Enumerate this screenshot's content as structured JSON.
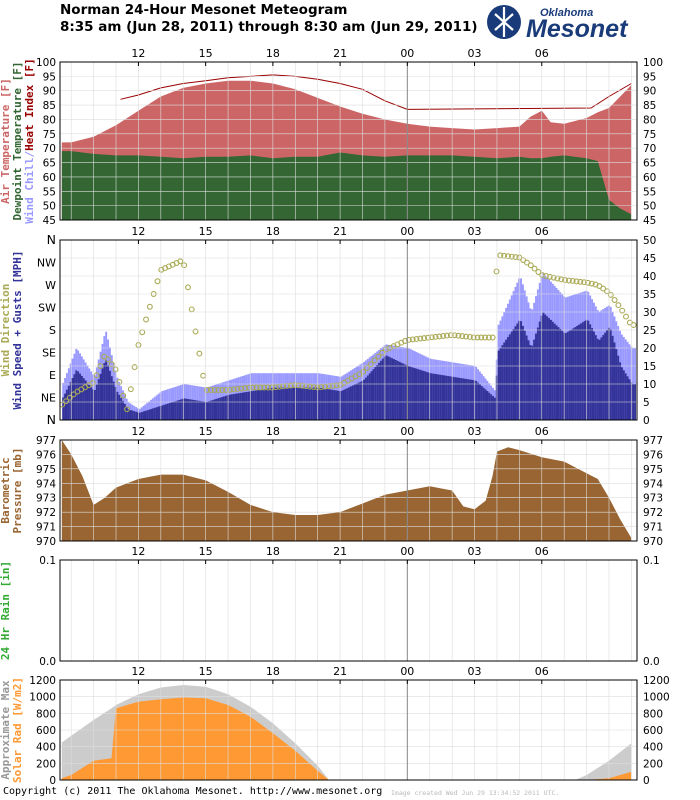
{
  "header": {
    "title": "Norman 24-Hour Mesonet Meteogram",
    "subtitle": "8:35 am (Jun 28, 2011) through 8:30 am (Jun 29, 2011)"
  },
  "logo": {
    "top": "Oklahoma",
    "main": "Mesonet"
  },
  "footer": {
    "copyright": "Copyright (c) 2011 The Oklahoma Mesonet. http://www.mesonet.org",
    "created": "Image created Wed Jun 29 13:34:52 2011 UTC."
  },
  "colors": {
    "air_temp": "#cc6666",
    "dewpoint": "#336633",
    "heat_index": "#990000",
    "wind_chill": "#9999ff",
    "wind_speed": "#333399",
    "gusts": "#9999ff",
    "wind_dir": "#aaaa55",
    "pressure": "#996633",
    "rain": "#33aa33",
    "solar_max": "#cccccc",
    "solar": "#ff9933"
  },
  "chart_data": [
    {
      "type": "area",
      "title": "Temperature",
      "ylabels": [
        {
          "text": "Air Temperature [F]",
          "color": "#cc6666"
        },
        {
          "text": "Dewpoint Temperature [F]",
          "color": "#336633"
        },
        {
          "text": "Wind Chill/",
          "color": "#9999ff"
        },
        {
          "text": "Heat Index [F]",
          "color": "#990000"
        }
      ],
      "x_ticks": [
        "12",
        "15",
        "18",
        "21",
        "00",
        "03",
        "06"
      ],
      "ylim": [
        45,
        100
      ],
      "yticks": [
        45,
        50,
        55,
        60,
        65,
        70,
        75,
        80,
        85,
        90,
        95,
        100
      ],
      "x_hours": [
        8.58,
        9,
        10,
        11,
        12,
        13,
        14,
        15,
        16,
        17,
        18,
        19,
        20,
        21,
        22,
        23,
        24,
        25,
        26,
        27,
        28,
        29,
        29.5,
        30,
        30.4,
        31,
        32,
        32.5,
        33,
        33.5,
        34
      ],
      "series": [
        {
          "name": "Air Temperature",
          "values": [
            72,
            72,
            74,
            78,
            83,
            88,
            91,
            92.5,
            93.5,
            93.5,
            92.5,
            90.5,
            87.5,
            84.5,
            82,
            80,
            78.5,
            77.5,
            77,
            76.5,
            77,
            77.5,
            81,
            83,
            79,
            78.5,
            80.5,
            82.5,
            84,
            88,
            92
          ]
        },
        {
          "name": "Dewpoint Temperature",
          "values": [
            69,
            69,
            68,
            67.5,
            67.5,
            67,
            66.5,
            67,
            67,
            67.5,
            66.5,
            67,
            67,
            68.5,
            67.5,
            67,
            67.5,
            67.5,
            67.5,
            67,
            66.5,
            67,
            66.5,
            66.5,
            67,
            67.5,
            66.5,
            65.5,
            52,
            49,
            47
          ]
        },
        {
          "name": "Heat Index",
          "x": [
            11.2,
            12,
            13,
            14,
            15,
            16,
            17,
            18,
            19,
            20,
            21,
            22,
            23,
            24,
            32.2,
            33,
            34
          ],
          "values": [
            87,
            88.5,
            91,
            92.5,
            93.5,
            94.5,
            95,
            95.5,
            95,
            94,
            92.5,
            90.5,
            86.5,
            83.5,
            84,
            88,
            92.5
          ]
        }
      ]
    },
    {
      "type": "bar",
      "title": "Wind",
      "ylabels": [
        {
          "text": "Wind Direction",
          "color": "#aaaa55"
        },
        {
          "text": "Wind Speed + Gusts [MPH]",
          "color": "#333399"
        }
      ],
      "x_ticks": [
        "12",
        "15",
        "18",
        "21",
        "00",
        "03",
        "06"
      ],
      "ylim": [
        0,
        50
      ],
      "yticks": [
        0,
        5,
        10,
        15,
        20,
        25,
        30,
        35,
        40,
        45,
        50
      ],
      "direction_ticks": [
        "N",
        "NE",
        "E",
        "SE",
        "S",
        "SW",
        "W",
        "NW",
        "N"
      ],
      "x_hours": [
        8.58,
        9.2,
        10,
        10.5,
        11,
        11.5,
        12,
        13,
        14,
        15,
        16,
        17,
        18,
        19,
        20,
        21,
        22,
        23,
        24,
        25,
        26,
        27,
        27.9,
        28,
        29,
        29.5,
        30,
        31,
        32,
        32.5,
        33,
        33.5,
        34
      ],
      "series": [
        {
          "name": "Wind Speed",
          "values": [
            6,
            14,
            8,
            17,
            8,
            3,
            2,
            4,
            6,
            5,
            7,
            8,
            9,
            9,
            9,
            8,
            11,
            18,
            15,
            13,
            12,
            11,
            6,
            19,
            28,
            20,
            30,
            24,
            28,
            22,
            26,
            15,
            10
          ]
        },
        {
          "name": "Gusts",
          "values": [
            10,
            20,
            12,
            25,
            12,
            5,
            3,
            8,
            10,
            9,
            11,
            13,
            13,
            13,
            13,
            12,
            16,
            21,
            20,
            17,
            16,
            15,
            8,
            26,
            40,
            30,
            41,
            34,
            36,
            30,
            32,
            24,
            20
          ]
        },
        {
          "name": "Wind Direction",
          "values": [
            30,
            55,
            75,
            130,
            100,
            20,
            150,
            300,
            320,
            60,
            60,
            65,
            65,
            70,
            65,
            70,
            95,
            140,
            160,
            165,
            170,
            165,
            165,
            330,
            325,
            310,
            290,
            280,
            275,
            270,
            255,
            225,
            190
          ]
        }
      ]
    },
    {
      "type": "area",
      "title": "Pressure",
      "ylabels": [
        {
          "text": "Barometric",
          "color": "#996633"
        },
        {
          "text": "Pressure [mb]",
          "color": "#996633"
        }
      ],
      "x_ticks": [
        "12",
        "15",
        "18",
        "21",
        "00",
        "03",
        "06"
      ],
      "ylim": [
        970,
        977
      ],
      "yticks": [
        970,
        971,
        972,
        973,
        974,
        975,
        976,
        977
      ],
      "x_hours": [
        8.58,
        9,
        9.5,
        10,
        10.5,
        11,
        12,
        13,
        14,
        15,
        16,
        17,
        18,
        19,
        20,
        21,
        22,
        23,
        24,
        25,
        26,
        26.5,
        27,
        27.5,
        27.8,
        28,
        28.5,
        29,
        30,
        31,
        32,
        32.5,
        33,
        33.5,
        34
      ],
      "series": [
        {
          "name": "Barometric Pressure",
          "values": [
            977,
            976,
            974.5,
            972.5,
            973,
            973.7,
            974.3,
            974.6,
            974.6,
            974.2,
            973.4,
            972.5,
            972,
            971.8,
            971.8,
            972,
            972.6,
            973.2,
            973.5,
            973.8,
            973.5,
            972.4,
            972.2,
            972.8,
            974.5,
            976.2,
            976.5,
            976.3,
            975.8,
            975.5,
            974.7,
            974.3,
            973,
            971.5,
            970.2
          ]
        }
      ]
    },
    {
      "type": "bar",
      "title": "Rain",
      "ylabels": [
        {
          "text": "24 Hr Rain [in]",
          "color": "#33aa33"
        }
      ],
      "x_ticks": [
        "12",
        "15",
        "18",
        "21",
        "00",
        "03",
        "06"
      ],
      "ylim": [
        0,
        0.1
      ],
      "yticks": [
        "0.0",
        "0.1"
      ],
      "x_hours": [
        8.58,
        34
      ],
      "series": [
        {
          "name": "24 Hr Rain",
          "values": [
            0,
            0
          ]
        }
      ]
    },
    {
      "type": "area",
      "title": "Solar Radiation",
      "ylabels": [
        {
          "text": "Approximate Max",
          "color": "#999999"
        },
        {
          "text": "Solar Rad [W/m2]",
          "color": "#ff9933"
        }
      ],
      "x_ticks": [
        "12",
        "15",
        "18",
        "21",
        "00",
        "03",
        "06"
      ],
      "ylim": [
        0,
        1200
      ],
      "yticks": [
        0,
        200,
        400,
        600,
        800,
        1000,
        1200
      ],
      "x_hours": [
        8.58,
        9,
        10,
        10.8,
        11,
        12,
        13,
        14,
        15,
        16,
        17,
        18,
        19,
        20,
        20.5,
        31.5,
        32,
        33,
        34
      ],
      "series": [
        {
          "name": "Approximate Max",
          "values": [
            450,
            530,
            720,
            860,
            900,
            1030,
            1110,
            1140,
            1120,
            1030,
            880,
            680,
            440,
            170,
            0,
            0,
            60,
            230,
            440
          ]
        },
        {
          "name": "Solar Rad",
          "values": [
            20,
            60,
            230,
            260,
            860,
            940,
            970,
            990,
            980,
            900,
            760,
            560,
            350,
            110,
            0,
            0,
            0,
            20,
            100
          ]
        }
      ]
    }
  ]
}
